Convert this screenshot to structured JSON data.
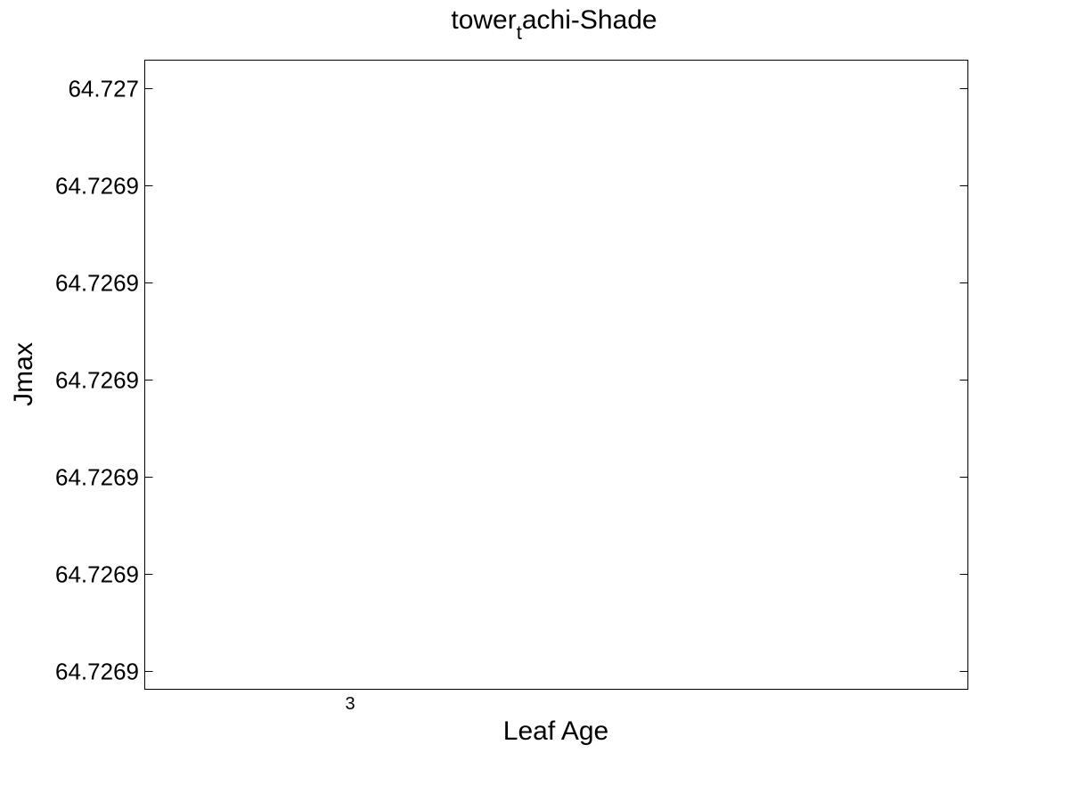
{
  "chart_data": {
    "type": "line",
    "title": {
      "base": "tower",
      "subscript": "t",
      "rest": "achi-Shade"
    },
    "xlabel": "Leaf Age",
    "ylabel": "Jmax",
    "x_ticks": [
      3
    ],
    "y_tick_labels": [
      "64.727",
      "64.7269",
      "64.7269",
      "64.7269",
      "64.7269",
      "64.7269",
      "64.7269"
    ],
    "series": [],
    "grid": false,
    "legend": "none"
  }
}
